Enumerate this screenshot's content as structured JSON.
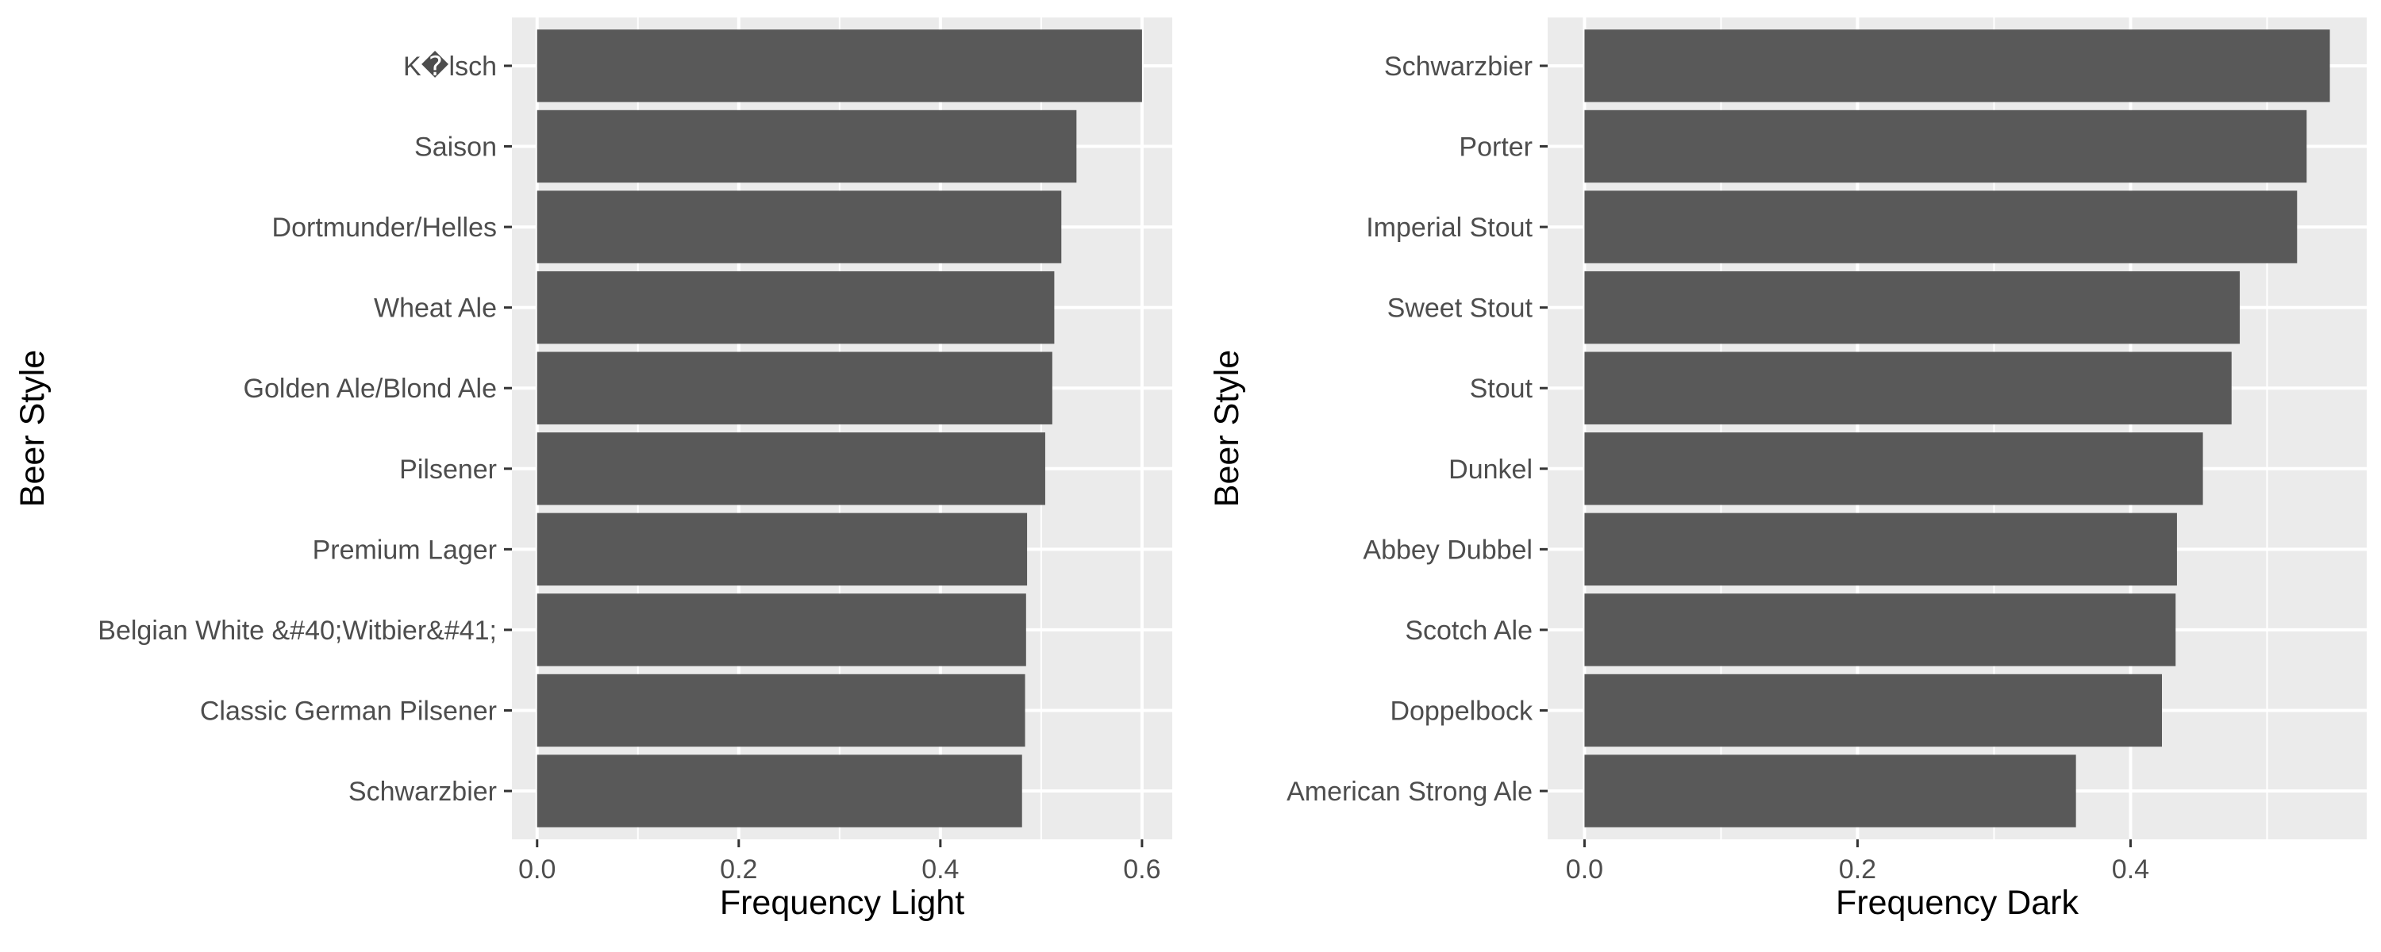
{
  "chart_data": [
    {
      "type": "bar",
      "orientation": "horizontal",
      "categories": [
        "K�lsch",
        "Saison",
        "Dortmunder/Helles",
        "Wheat Ale",
        "Golden Ale/Blond Ale",
        "Pilsener",
        "Premium Lager",
        "Belgian White &#40;Witbier&#41;",
        "Classic German Pilsener",
        "Schwarzbier"
      ],
      "values": [
        0.6,
        0.535,
        0.52,
        0.513,
        0.511,
        0.504,
        0.486,
        0.485,
        0.484,
        0.481
      ],
      "xlabel": "Frequency Light",
      "ylabel": "Beer Style",
      "xlim": [
        -0.025,
        0.63
      ],
      "xticks": [
        0.0,
        0.2,
        0.4,
        0.6
      ],
      "xtick_labels": [
        "0.0",
        "0.2",
        "0.4",
        "0.6"
      ],
      "grid": true
    },
    {
      "type": "bar",
      "orientation": "horizontal",
      "categories": [
        "Schwarzbier",
        "Porter",
        "Imperial Stout",
        "Sweet Stout",
        "Stout",
        "Dunkel",
        "Abbey Dubbel",
        "Scotch Ale",
        "Doppelbock",
        "American Strong Ale"
      ],
      "values": [
        0.546,
        0.529,
        0.522,
        0.48,
        0.474,
        0.453,
        0.434,
        0.433,
        0.423,
        0.36
      ],
      "xlabel": "Frequency Dark",
      "ylabel": "Beer Style",
      "xlim": [
        -0.027,
        0.573
      ],
      "xticks": [
        0.0,
        0.2,
        0.4
      ],
      "xtick_labels": [
        "0.0",
        "0.2",
        "0.4"
      ],
      "grid": true
    }
  ],
  "colors": {
    "panel_background": "#ebebeb",
    "grid": "#ffffff",
    "bar": "#595959",
    "tick_text": "#4d4d4d",
    "axis_title": "#000000"
  }
}
